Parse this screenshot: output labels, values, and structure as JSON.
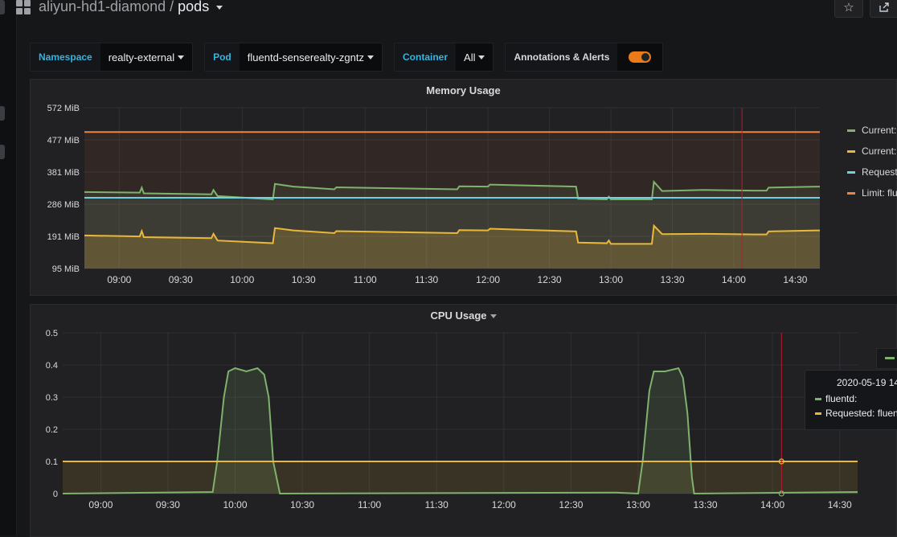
{
  "header": {
    "folder": "aliyun-hd1-diamond",
    "separator": "/",
    "dashboard": "pods",
    "star_icon": "star-icon",
    "share_icon": "share-icon"
  },
  "variables": [
    {
      "label": "Namespace",
      "value": "realty-external"
    },
    {
      "label": "Pod",
      "value": "fluentd-senserealty-zgntz"
    },
    {
      "label": "Container",
      "value": "All"
    }
  ],
  "annotations": {
    "label": "Annotations & Alerts",
    "enabled": true
  },
  "colors": {
    "green": "#7eb26d",
    "yellow": "#eab839",
    "blue": "#6ed0e0",
    "orange": "#ef843c",
    "red": "#e24d42",
    "accent": "#33b5e5"
  },
  "memory_panel": {
    "title": "Memory Usage",
    "legend": [
      "Current:",
      "Current:",
      "Requeste",
      "Limit: flu"
    ]
  },
  "cpu_panel": {
    "title": "CPU Usage",
    "tooltip": {
      "date": "2020-05-19 14",
      "rows": [
        "fluentd:",
        "Requested: fluent"
      ]
    }
  },
  "chart_data": [
    {
      "type": "line",
      "title": "Memory Usage",
      "xlabel": "",
      "ylabel": "",
      "x_ticks": [
        "09:00",
        "09:30",
        "10:00",
        "10:30",
        "11:00",
        "11:30",
        "12:00",
        "12:30",
        "13:00",
        "13:30",
        "14:00",
        "14:30"
      ],
      "y_ticks": [
        "95 MiB",
        "191 MiB",
        "286 MiB",
        "381 MiB",
        "477 MiB",
        "572 MiB"
      ],
      "ylim": [
        95,
        572
      ],
      "xlim": [
        "08:43",
        "14:42"
      ],
      "grid": true,
      "fill": true,
      "legend_position": "right",
      "annotation_time": "14:04",
      "series": [
        {
          "name": "Current:",
          "color": "#7eb26d",
          "points": [
            [
              "08:43",
              322
            ],
            [
              "09:10",
              320
            ],
            [
              "09:11",
              335
            ],
            [
              "09:12",
              318
            ],
            [
              "09:45",
              315
            ],
            [
              "09:46",
              328
            ],
            [
              "09:48",
              310
            ],
            [
              "10:15",
              300
            ],
            [
              "10:16",
              346
            ],
            [
              "10:25",
              338
            ],
            [
              "10:45",
              330
            ],
            [
              "10:46",
              336
            ],
            [
              "11:45",
              330
            ],
            [
              "11:46",
              339
            ],
            [
              "12:00",
              338
            ],
            [
              "12:01",
              344
            ],
            [
              "12:43",
              338
            ],
            [
              "12:44",
              302
            ],
            [
              "12:58",
              300
            ],
            [
              "12:59",
              308
            ],
            [
              "13:00",
              300
            ],
            [
              "13:20",
              300
            ],
            [
              "13:21",
              352
            ],
            [
              "13:25",
              325
            ],
            [
              "13:45",
              328
            ],
            [
              "14:10",
              326
            ],
            [
              "14:16",
              326
            ],
            [
              "14:17",
              335
            ],
            [
              "14:42",
              338
            ]
          ]
        },
        {
          "name": "Current:",
          "color": "#eab839",
          "points": [
            [
              "08:43",
              193
            ],
            [
              "09:10",
              190
            ],
            [
              "09:11",
              206
            ],
            [
              "09:12",
              188
            ],
            [
              "09:45",
              185
            ],
            [
              "09:46",
              198
            ],
            [
              "09:48",
              178
            ],
            [
              "10:15",
              170
            ],
            [
              "10:16",
              215
            ],
            [
              "10:25",
              208
            ],
            [
              "10:45",
              200
            ],
            [
              "10:46",
              206
            ],
            [
              "11:45",
              200
            ],
            [
              "11:46",
              209
            ],
            [
              "12:00",
              208
            ],
            [
              "12:01",
              213
            ],
            [
              "12:43",
              205
            ],
            [
              "12:44",
              172
            ],
            [
              "12:58",
              170
            ],
            [
              "12:59",
              178
            ],
            [
              "13:00",
              168
            ],
            [
              "13:20",
              168
            ],
            [
              "13:21",
              222
            ],
            [
              "13:25",
              197
            ],
            [
              "13:45",
              198
            ],
            [
              "14:10",
              196
            ],
            [
              "14:16",
              196
            ],
            [
              "14:17",
              205
            ],
            [
              "14:42",
              208
            ]
          ]
        },
        {
          "name": "Requeste",
          "color": "#6ed0e0",
          "points": [
            [
              "08:43",
              305
            ],
            [
              "14:42",
              305
            ]
          ]
        },
        {
          "name": "Limit: flu",
          "color": "#ef843c",
          "points": [
            [
              "08:43",
              500
            ],
            [
              "14:42",
              500
            ]
          ]
        }
      ]
    },
    {
      "type": "line",
      "title": "CPU Usage",
      "xlabel": "",
      "ylabel": "",
      "x_ticks": [
        "09:00",
        "09:30",
        "10:00",
        "10:30",
        "11:00",
        "11:30",
        "12:00",
        "12:30",
        "13:00",
        "13:30",
        "14:00",
        "14:30"
      ],
      "y_ticks": [
        "0",
        "0.1",
        "0.2",
        "0.3",
        "0.4",
        "0.5"
      ],
      "ylim": [
        0,
        0.5
      ],
      "xlim": [
        "08:43",
        "14:38"
      ],
      "grid": true,
      "fill": true,
      "annotation_time": "14:04",
      "series": [
        {
          "name": "fluentd:",
          "color": "#7eb26d",
          "points": [
            [
              "08:43",
              0.0
            ],
            [
              "09:50",
              0.005
            ],
            [
              "09:52",
              0.1
            ],
            [
              "09:55",
              0.3
            ],
            [
              "09:57",
              0.38
            ],
            [
              "10:00",
              0.39
            ],
            [
              "10:05",
              0.38
            ],
            [
              "10:10",
              0.39
            ],
            [
              "10:13",
              0.37
            ],
            [
              "10:15",
              0.3
            ],
            [
              "10:17",
              0.1
            ],
            [
              "10:20",
              0.0
            ],
            [
              "12:50",
              0.003
            ],
            [
              "13:00",
              0.0
            ],
            [
              "13:02",
              0.1
            ],
            [
              "13:05",
              0.32
            ],
            [
              "13:07",
              0.38
            ],
            [
              "13:12",
              0.38
            ],
            [
              "13:18",
              0.39
            ],
            [
              "13:20",
              0.36
            ],
            [
              "13:22",
              0.25
            ],
            [
              "13:24",
              0.05
            ],
            [
              "13:25",
              0.0
            ],
            [
              "14:38",
              0.005
            ]
          ]
        },
        {
          "name": "Requested: fluent",
          "color": "#eab839",
          "points": [
            [
              "08:43",
              0.1
            ],
            [
              "14:38",
              0.1
            ]
          ]
        }
      ]
    }
  ]
}
